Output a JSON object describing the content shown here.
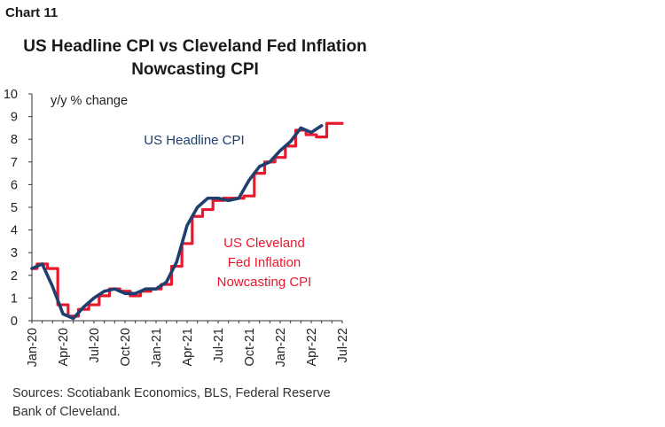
{
  "chart_label": "Chart 11",
  "source": "Sources: Scotiabank Economics, BLS, Federal Reserve Bank of Cleveland.",
  "chart_data": {
    "type": "line",
    "title": "US Headline CPI vs Cleveland Fed Inflation Nowcasting CPI",
    "ylabel": "y/y % change",
    "xlabel": "",
    "ylim": [
      0,
      10
    ],
    "y_ticks": [
      0,
      1,
      2,
      3,
      4,
      5,
      6,
      7,
      8,
      9,
      10
    ],
    "x_tick_labels": [
      "Jan-20",
      "Apr-20",
      "Jul-20",
      "Oct-20",
      "Jan-21",
      "Apr-21",
      "Jul-21",
      "Oct-21",
      "Jan-22",
      "Apr-22",
      "Jul-22"
    ],
    "categories": [
      "Jan-20",
      "Feb-20",
      "Mar-20",
      "Apr-20",
      "May-20",
      "Jun-20",
      "Jul-20",
      "Aug-20",
      "Sep-20",
      "Oct-20",
      "Nov-20",
      "Dec-20",
      "Jan-21",
      "Feb-21",
      "Mar-21",
      "Apr-21",
      "May-21",
      "Jun-21",
      "Jul-21",
      "Aug-21",
      "Sep-21",
      "Oct-21",
      "Nov-21",
      "Dec-21",
      "Jan-22",
      "Feb-22",
      "Mar-22",
      "Apr-22",
      "May-22",
      "Jun-22",
      "Jul-22"
    ],
    "grid": false,
    "series": [
      {
        "name": "US Headline CPI",
        "color": "#1f3f6e",
        "style": "line",
        "values": [
          2.3,
          2.5,
          1.5,
          0.3,
          0.1,
          0.6,
          1.0,
          1.3,
          1.4,
          1.2,
          1.2,
          1.4,
          1.4,
          1.7,
          2.6,
          4.2,
          5.0,
          5.4,
          5.4,
          5.3,
          5.4,
          6.2,
          6.8,
          7.0,
          7.5,
          7.9,
          8.5,
          8.3,
          8.6,
          null,
          null
        ]
      },
      {
        "name": "US Cleveland Fed Inflation Nowcasting CPI",
        "color": "#e8192c",
        "style": "step",
        "values": [
          2.3,
          2.5,
          2.3,
          0.7,
          0.2,
          0.5,
          0.7,
          1.1,
          1.4,
          1.3,
          1.1,
          1.3,
          1.4,
          1.6,
          2.4,
          3.4,
          4.6,
          4.9,
          5.3,
          5.4,
          5.4,
          5.5,
          6.5,
          7.0,
          7.2,
          7.7,
          8.4,
          8.2,
          8.1,
          8.7,
          8.7
        ]
      }
    ],
    "annotations": [
      {
        "text": "US Headline CPI",
        "series": 0
      },
      {
        "text": "US Cleveland Fed Inflation Nowcasting CPI",
        "series": 1
      }
    ]
  }
}
